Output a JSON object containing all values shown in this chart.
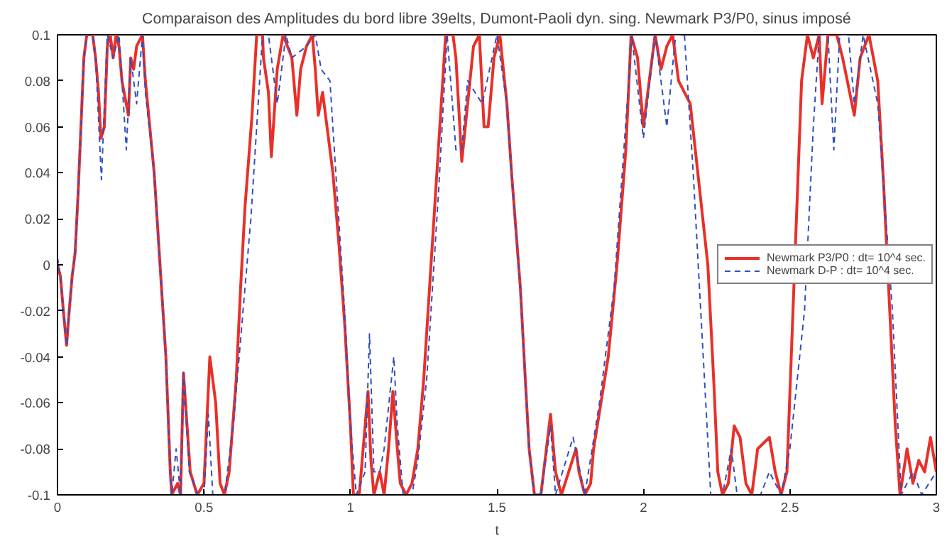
{
  "chart_data": {
    "type": "line",
    "title": "Comparaison des Amplitudes du bord libre 39elts, Dumont-Paoli dyn. sing. Newmark P3/P0, sinus imposé",
    "xlabel": "t",
    "xlim": [
      0,
      3
    ],
    "ylim": [
      -0.1,
      0.1
    ],
    "xticks": [
      0,
      0.5,
      1,
      1.5,
      2,
      2.5,
      3
    ],
    "yticks": [
      -0.1,
      -0.08,
      -0.06,
      -0.04,
      -0.02,
      0,
      0.02,
      0.04,
      0.06,
      0.08,
      0.1
    ],
    "grid": false,
    "legend": "right",
    "marker": "none",
    "series": [
      {
        "name": "Newmark P3/P0 : dt= 10^4 sec.",
        "color": "#e8302a",
        "line_style": "solid",
        "x": [
          0,
          0.01,
          0.02,
          0.031,
          0.04,
          0.05,
          0.06,
          0.07,
          0.08,
          0.09,
          0.1,
          0.12,
          0.13,
          0.14,
          0.148,
          0.16,
          0.17,
          0.18,
          0.19,
          0.2,
          0.21,
          0.22,
          0.242,
          0.25,
          0.26,
          0.27,
          0.29,
          0.3,
          0.33,
          0.35,
          0.37,
          0.385,
          0.39,
          0.41,
          0.42,
          0.43,
          0.453,
          0.477,
          0.5,
          0.52,
          0.54,
          0.555,
          0.57,
          0.586,
          0.61,
          0.625,
          0.64,
          0.664,
          0.68,
          0.7,
          0.703,
          0.72,
          0.73,
          0.75,
          0.77,
          0.8,
          0.817,
          0.83,
          0.85,
          0.87,
          0.88,
          0.89,
          0.905,
          0.92,
          0.94,
          0.96,
          0.98,
          1.0,
          1.01,
          1.03,
          1.05,
          1.06,
          1.07,
          1.08,
          1.1,
          1.115,
          1.13,
          1.145,
          1.16,
          1.17,
          1.19,
          1.21,
          1.23,
          1.25,
          1.27,
          1.29,
          1.31,
          1.325,
          1.35,
          1.36,
          1.38,
          1.4,
          1.42,
          1.44,
          1.456,
          1.47,
          1.49,
          1.51,
          1.534,
          1.55,
          1.58,
          1.597,
          1.61,
          1.628,
          1.65,
          1.683,
          1.7,
          1.72,
          1.77,
          1.78,
          1.8,
          1.82,
          1.83,
          1.88,
          1.91,
          1.94,
          1.958,
          1.98,
          2.0,
          2.02,
          2.04,
          2.06,
          2.08,
          2.1,
          2.12,
          2.16,
          2.19,
          2.22,
          2.24,
          2.254,
          2.27,
          2.29,
          2.31,
          2.33,
          2.35,
          2.37,
          2.39,
          2.43,
          2.45,
          2.47,
          2.49,
          2.54,
          2.56,
          2.58,
          2.6,
          2.61,
          2.63,
          2.66,
          2.68,
          2.72,
          2.74,
          2.77,
          2.8,
          2.82,
          2.86,
          2.876,
          2.9,
          2.92,
          2.94,
          2.96,
          2.98,
          3.0
        ],
        "values": [
          0.0,
          -0.005,
          -0.02,
          -0.035,
          -0.02,
          -0.005,
          0.005,
          0.03,
          0.06,
          0.09,
          0.1,
          0.1,
          0.09,
          0.075,
          0.055,
          0.06,
          0.095,
          0.1,
          0.09,
          0.1,
          0.095,
          0.08,
          0.065,
          0.09,
          0.085,
          0.095,
          0.1,
          0.08,
          0.04,
          0.0,
          -0.04,
          -0.09,
          -0.1,
          -0.095,
          -0.1,
          -0.047,
          -0.09,
          -0.1,
          -0.095,
          -0.04,
          -0.06,
          -0.095,
          -0.1,
          -0.09,
          -0.05,
          -0.01,
          0.025,
          0.065,
          0.1,
          0.1,
          0.09,
          0.075,
          0.047,
          0.085,
          0.1,
          0.09,
          0.065,
          0.085,
          0.095,
          0.1,
          0.085,
          0.065,
          0.075,
          0.06,
          0.04,
          0.01,
          -0.025,
          -0.07,
          -0.1,
          -0.1,
          -0.07,
          -0.055,
          -0.085,
          -0.1,
          -0.09,
          -0.1,
          -0.08,
          -0.055,
          -0.08,
          -0.095,
          -0.1,
          -0.095,
          -0.08,
          -0.05,
          -0.01,
          0.03,
          0.07,
          0.1,
          0.1,
          0.09,
          0.045,
          0.07,
          0.095,
          0.1,
          0.06,
          0.06,
          0.09,
          0.1,
          0.07,
          0.04,
          -0.01,
          -0.05,
          -0.08,
          -0.1,
          -0.1,
          -0.065,
          -0.09,
          -0.1,
          -0.08,
          -0.09,
          -0.1,
          -0.095,
          -0.08,
          -0.04,
          0.0,
          0.05,
          0.1,
          0.09,
          0.06,
          0.08,
          0.1,
          0.085,
          0.095,
          0.1,
          0.08,
          0.07,
          0.035,
          0.0,
          -0.05,
          -0.09,
          -0.1,
          -0.095,
          -0.07,
          -0.075,
          -0.095,
          -0.1,
          -0.08,
          -0.075,
          -0.09,
          -0.1,
          -0.09,
          0.08,
          0.1,
          0.09,
          0.1,
          0.07,
          0.1,
          0.1,
          0.09,
          0.065,
          0.09,
          0.1,
          0.08,
          0.035,
          -0.07,
          -0.1,
          -0.08,
          -0.095,
          -0.085,
          -0.09,
          -0.075,
          -0.09
        ]
      },
      {
        "name": "Newmark D-P : dt= 10^4 sec.",
        "color": "#3050c0",
        "line_style": "dashed",
        "x": [
          0,
          0.01,
          0.02,
          0.031,
          0.04,
          0.05,
          0.06,
          0.07,
          0.08,
          0.09,
          0.1,
          0.12,
          0.13,
          0.15,
          0.17,
          0.19,
          0.21,
          0.235,
          0.25,
          0.27,
          0.29,
          0.3,
          0.33,
          0.35,
          0.37,
          0.385,
          0.39,
          0.405,
          0.42,
          0.43,
          0.45,
          0.48,
          0.5,
          0.515,
          0.53,
          0.57,
          0.6,
          0.64,
          0.66,
          0.68,
          0.7,
          0.72,
          0.75,
          0.78,
          0.8,
          0.85,
          0.88,
          0.9,
          0.93,
          0.95,
          0.98,
          1.0,
          1.02,
          1.05,
          1.065,
          1.08,
          1.1,
          1.115,
          1.148,
          1.16,
          1.18,
          1.21,
          1.23,
          1.26,
          1.3,
          1.33,
          1.36,
          1.38,
          1.4,
          1.45,
          1.5,
          1.534,
          1.55,
          1.58,
          1.597,
          1.61,
          1.628,
          1.65,
          1.683,
          1.7,
          1.76,
          1.8,
          1.85,
          1.9,
          1.95,
          1.96,
          2.0,
          2.04,
          2.08,
          2.11,
          2.14,
          2.17,
          2.2,
          2.23,
          2.27,
          2.3,
          2.32,
          2.4,
          2.43,
          2.47,
          2.5,
          2.55,
          2.58,
          2.6,
          2.63,
          2.65,
          2.67,
          2.7,
          2.72,
          2.75,
          2.8,
          2.85,
          2.88,
          2.92,
          2.95,
          3.0
        ],
        "values": [
          0.003,
          -0.005,
          -0.02,
          -0.035,
          -0.02,
          -0.005,
          0.005,
          0.03,
          0.06,
          0.09,
          0.1,
          0.1,
          0.09,
          0.037,
          0.1,
          0.09,
          0.1,
          0.05,
          0.09,
          0.07,
          0.1,
          0.075,
          0.04,
          0.0,
          -0.04,
          -0.09,
          -0.1,
          -0.08,
          -0.1,
          -0.047,
          -0.09,
          -0.1,
          -0.1,
          -0.065,
          -0.1,
          -0.1,
          -0.07,
          -0.01,
          0.02,
          0.06,
          0.1,
          0.1,
          0.07,
          0.1,
          0.09,
          0.095,
          0.1,
          0.085,
          0.08,
          0.04,
          -0.02,
          -0.07,
          -0.1,
          -0.09,
          -0.03,
          -0.09,
          -0.09,
          -0.08,
          -0.04,
          -0.07,
          -0.1,
          -0.1,
          -0.085,
          -0.05,
          0.03,
          0.1,
          0.05,
          0.05,
          0.08,
          0.07,
          0.1,
          0.07,
          0.04,
          -0.01,
          -0.05,
          -0.08,
          -0.1,
          -0.1,
          -0.07,
          -0.1,
          -0.075,
          -0.1,
          -0.06,
          -0.01,
          0.08,
          0.1,
          0.055,
          0.1,
          0.06,
          0.1,
          0.1,
          0.04,
          -0.03,
          -0.1,
          -0.1,
          -0.08,
          -0.1,
          -0.1,
          -0.09,
          -0.1,
          -0.08,
          -0.02,
          0.06,
          0.1,
          0.1,
          0.05,
          0.1,
          0.1,
          0.07,
          0.1,
          0.07,
          -0.02,
          -0.1,
          -0.09,
          -0.1,
          -0.09
        ]
      }
    ]
  }
}
